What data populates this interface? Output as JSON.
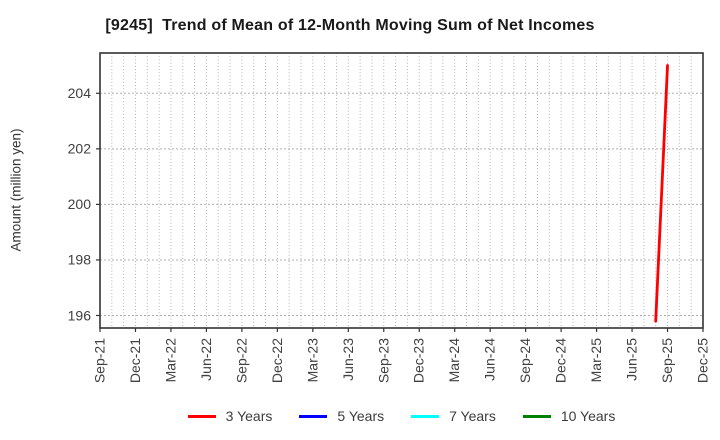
{
  "chart_data": {
    "type": "line",
    "title": "[9245]  Trend of Mean of 12-Month Moving Sum of Net Incomes",
    "ylabel": "Amount (million yen)",
    "x_start": "Sep-21",
    "x_end": "Dec-25",
    "x_tick_labels": [
      "Sep-21",
      "Dec-21",
      "Mar-22",
      "Jun-22",
      "Sep-22",
      "Dec-22",
      "Mar-23",
      "Jun-23",
      "Sep-23",
      "Dec-23",
      "Mar-24",
      "Jun-24",
      "Sep-24",
      "Dec-24",
      "Mar-25",
      "Jun-25",
      "Sep-25",
      "Dec-25"
    ],
    "yticks": [
      196,
      198,
      200,
      202,
      204
    ],
    "ylim": [
      195.55,
      205.45
    ],
    "grid": {
      "vertical": "monthly-dotted",
      "horizontal": "dotted",
      "color": "#b0b0b0"
    },
    "legend_position": "bottom-center",
    "series": [
      {
        "name": "3 Years",
        "color": "#ff0000",
        "points": [
          {
            "month": "Aug-25",
            "value": 195.8
          },
          {
            "month": "Sep-25",
            "value": 205.0
          }
        ]
      },
      {
        "name": "5 Years",
        "color": "#0000ff",
        "points": []
      },
      {
        "name": "7 Years",
        "color": "#00ffff",
        "points": []
      },
      {
        "name": "10 Years",
        "color": "#008000",
        "points": []
      }
    ],
    "palette": {
      "spine": "#333333",
      "tick_label": "#404040",
      "title": "#1a1a1a"
    }
  }
}
